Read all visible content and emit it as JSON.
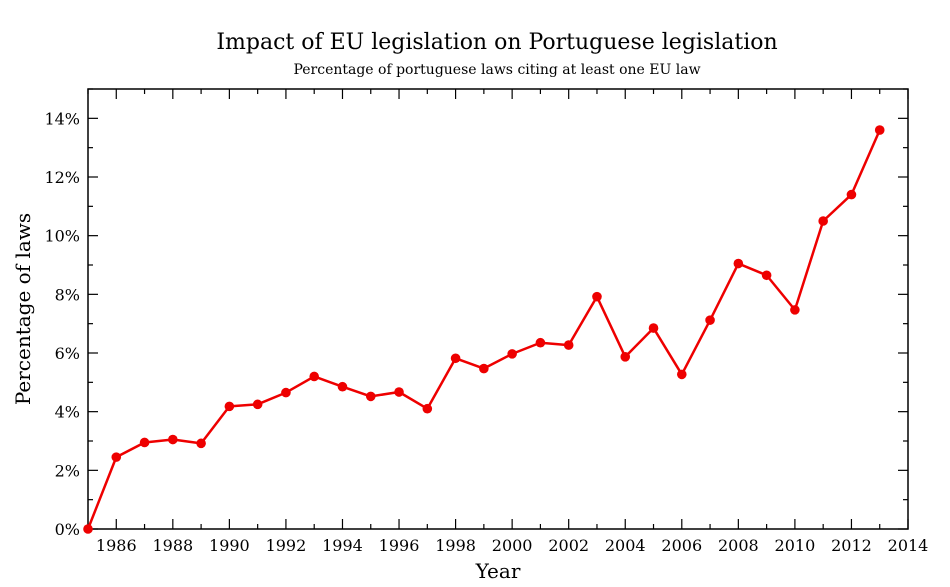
{
  "chart_data": {
    "type": "line",
    "title": "Impact of EU legislation on Portuguese legislation",
    "subtitle": "Percentage of portuguese laws citing at least one EU law",
    "xlabel": "Year",
    "ylabel": "Percentage of laws",
    "xlim": [
      1985,
      2014
    ],
    "ylim": [
      0,
      15
    ],
    "x_ticks": [
      1986,
      1988,
      1990,
      1992,
      1994,
      1996,
      1998,
      2000,
      2002,
      2004,
      2006,
      2008,
      2010,
      2012,
      2014
    ],
    "x_tick_labels": [
      "1986",
      "1988",
      "1990",
      "1992",
      "1994",
      "1996",
      "1998",
      "2000",
      "2002",
      "2004",
      "2006",
      "2008",
      "2010",
      "2012",
      "2014"
    ],
    "y_ticks": [
      0,
      2,
      4,
      6,
      8,
      10,
      12,
      14
    ],
    "y_tick_labels": [
      "0%",
      "2%",
      "4%",
      "6%",
      "8%",
      "10%",
      "12%",
      "14%"
    ],
    "grid": false,
    "legend": "none",
    "series": [
      {
        "color": "#ee0000",
        "x": [
          1985,
          1986,
          1987,
          1988,
          1989,
          1990,
          1991,
          1992,
          1993,
          1994,
          1995,
          1996,
          1997,
          1998,
          1999,
          2000,
          2001,
          2002,
          2003,
          2004,
          2005,
          2006,
          2007,
          2008,
          2009,
          2010,
          2011,
          2012,
          2013
        ],
        "values": [
          0.0,
          2.45,
          2.95,
          3.05,
          2.92,
          4.18,
          4.25,
          4.65,
          5.2,
          4.85,
          4.52,
          4.67,
          4.1,
          5.82,
          5.47,
          5.97,
          6.35,
          6.27,
          7.92,
          5.87,
          6.85,
          5.27,
          7.12,
          9.05,
          8.65,
          7.47,
          10.5,
          11.4,
          13.6
        ]
      }
    ]
  }
}
